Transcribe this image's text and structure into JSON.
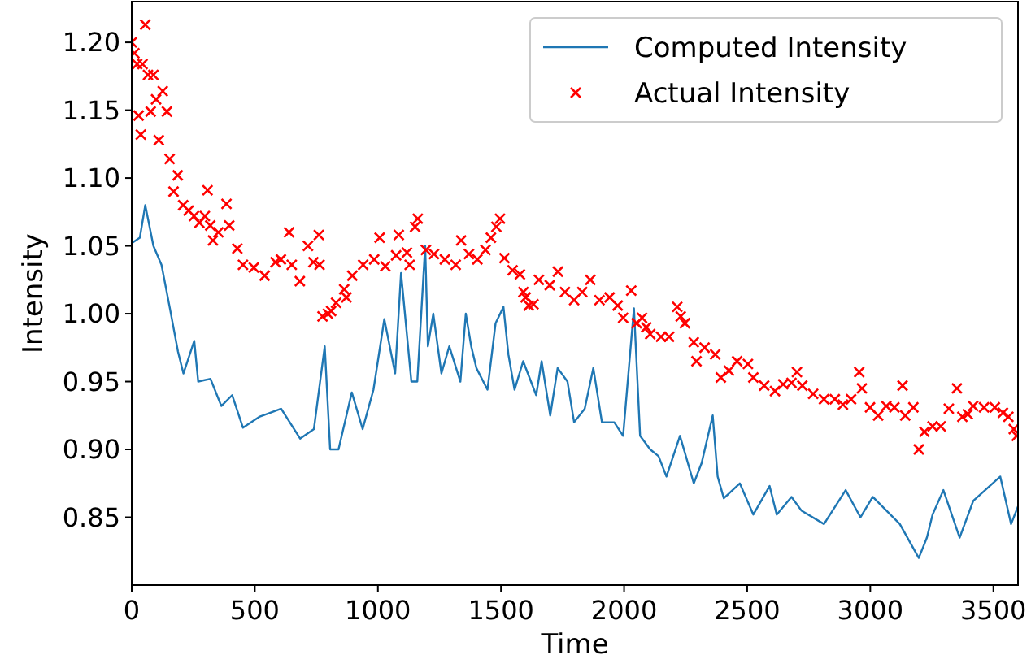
{
  "chart_data": {
    "type": "line",
    "xlabel": "Time",
    "ylabel": "Intensity",
    "xlim": [
      0,
      3600
    ],
    "xticks": [
      0,
      500,
      1000,
      1500,
      2000,
      2500,
      3000,
      3500
    ],
    "ylim": [
      0.8,
      1.23
    ],
    "yticks": [
      0.85,
      {
        "value": 0.9,
        "label": "0.90"
      },
      0.95,
      {
        "value": 1.0,
        "label": "1.00"
      },
      1.05,
      {
        "value": 1.1,
        "label": "1.10"
      },
      1.15,
      {
        "value": 1.2,
        "label": "1.20"
      }
    ],
    "grid": false,
    "legend": "top right",
    "series": [
      {
        "name": "Computed Intensity",
        "color": "#1f77b4",
        "x": [
          0,
          33,
          55,
          88,
          121,
          155,
          188,
          210,
          254,
          270,
          320,
          364,
          408,
          452,
          518,
          607,
          684,
          740,
          784,
          806,
          840,
          894,
          938,
          982,
          1026,
          1070,
          1094,
          1136,
          1160,
          1192,
          1203,
          1225,
          1258,
          1290,
          1335,
          1357,
          1379,
          1400,
          1445,
          1478,
          1510,
          1530,
          1555,
          1590,
          1643,
          1665,
          1700,
          1730,
          1770,
          1797,
          1840,
          1875,
          1910,
          1960,
          1996,
          2040,
          2065,
          2106,
          2140,
          2172,
          2227,
          2283,
          2315,
          2360,
          2380,
          2405,
          2470,
          2525,
          2591,
          2620,
          2680,
          2720,
          2812,
          2900,
          2960,
          3010,
          3120,
          3197,
          3230,
          3253,
          3297,
          3363,
          3418,
          3528,
          3572,
          3600
        ],
        "values": [
          1.052,
          1.056,
          1.08,
          1.05,
          1.036,
          1.004,
          0.972,
          0.956,
          0.98,
          0.95,
          0.952,
          0.932,
          0.94,
          0.916,
          0.924,
          0.93,
          0.908,
          0.915,
          0.976,
          0.9,
          0.9,
          0.942,
          0.915,
          0.944,
          0.996,
          0.956,
          1.03,
          0.95,
          0.95,
          1.05,
          0.976,
          1.0,
          0.956,
          0.976,
          0.95,
          1.0,
          0.976,
          0.96,
          0.944,
          0.993,
          1.005,
          0.97,
          0.944,
          0.965,
          0.94,
          0.965,
          0.925,
          0.96,
          0.95,
          0.92,
          0.93,
          0.96,
          0.92,
          0.92,
          0.91,
          1.004,
          0.91,
          0.9,
          0.895,
          0.88,
          0.91,
          0.875,
          0.89,
          0.925,
          0.88,
          0.864,
          0.875,
          0.852,
          0.873,
          0.852,
          0.865,
          0.855,
          0.845,
          0.87,
          0.85,
          0.865,
          0.845,
          0.82,
          0.835,
          0.852,
          0.87,
          0.835,
          0.862,
          0.88,
          0.845,
          0.858
        ]
      },
      {
        "name": "Actual Intensity",
        "type": "scatter",
        "marker": "cross",
        "color": "#ff0000",
        "x": [
          0,
          11,
          22,
          28,
          37,
          44,
          55,
          66,
          77,
          88,
          99,
          110,
          126,
          143,
          154,
          170,
          187,
          209,
          231,
          253,
          275,
          297,
          308,
          319,
          330,
          352,
          385,
          396,
          429,
          452,
          496,
          540,
          584,
          606,
          639,
          650,
          683,
          716,
          738,
          760,
          763,
          775,
          797,
          810,
          830,
          863,
          872,
          896,
          940,
          985,
          1007,
          1030,
          1074,
          1085,
          1118,
          1129,
          1151,
          1162,
          1195,
          1228,
          1272,
          1316,
          1338,
          1370,
          1404,
          1437,
          1459,
          1481,
          1496,
          1514,
          1547,
          1577,
          1591,
          1600,
          1613,
          1632,
          1654,
          1698,
          1731,
          1760,
          1797,
          1830,
          1863,
          1900,
          1941,
          1974,
          1996,
          2029,
          2051,
          2073,
          2090,
          2106,
          2150,
          2183,
          2216,
          2230,
          2247,
          2283,
          2294,
          2327,
          2370,
          2393,
          2426,
          2459,
          2503,
          2525,
          2569,
          2613,
          2646,
          2680,
          2702,
          2724,
          2768,
          2812,
          2856,
          2889,
          2922,
          2955,
          2966,
          2999,
          3032,
          3065,
          3098,
          3131,
          3142,
          3175,
          3197,
          3220,
          3253,
          3286,
          3319,
          3352,
          3374,
          3396,
          3418,
          3462,
          3506,
          3539,
          3561,
          3583,
          3595
        ],
        "values": [
          1.2,
          1.192,
          1.184,
          1.146,
          1.132,
          1.184,
          1.213,
          1.176,
          1.149,
          1.176,
          1.158,
          1.128,
          1.164,
          1.149,
          1.114,
          1.09,
          1.102,
          1.08,
          1.076,
          1.072,
          1.067,
          1.072,
          1.091,
          1.065,
          1.054,
          1.06,
          1.081,
          1.065,
          1.048,
          1.036,
          1.034,
          1.028,
          1.038,
          1.04,
          1.06,
          1.036,
          1.024,
          1.05,
          1.038,
          1.058,
          1.036,
          0.998,
          1.0,
          1.002,
          1.008,
          1.018,
          1.012,
          1.028,
          1.036,
          1.04,
          1.056,
          1.035,
          1.043,
          1.058,
          1.045,
          1.036,
          1.064,
          1.07,
          1.047,
          1.044,
          1.04,
          1.036,
          1.054,
          1.044,
          1.04,
          1.047,
          1.056,
          1.064,
          1.07,
          1.041,
          1.032,
          1.029,
          1.016,
          1.012,
          1.006,
          1.007,
          1.025,
          1.021,
          1.031,
          1.016,
          1.01,
          1.016,
          1.025,
          1.01,
          1.012,
          1.006,
          0.997,
          1.017,
          0.993,
          0.997,
          0.99,
          0.985,
          0.983,
          0.983,
          1.005,
          0.998,
          0.993,
          0.979,
          0.965,
          0.975,
          0.97,
          0.953,
          0.958,
          0.965,
          0.963,
          0.953,
          0.947,
          0.943,
          0.948,
          0.949,
          0.957,
          0.947,
          0.941,
          0.937,
          0.937,
          0.933,
          0.937,
          0.957,
          0.945,
          0.931,
          0.925,
          0.932,
          0.931,
          0.947,
          0.925,
          0.931,
          0.9,
          0.913,
          0.917,
          0.917,
          0.93,
          0.945,
          0.924,
          0.926,
          0.932,
          0.931,
          0.931,
          0.927,
          0.924,
          0.915,
          0.91
        ]
      }
    ]
  }
}
